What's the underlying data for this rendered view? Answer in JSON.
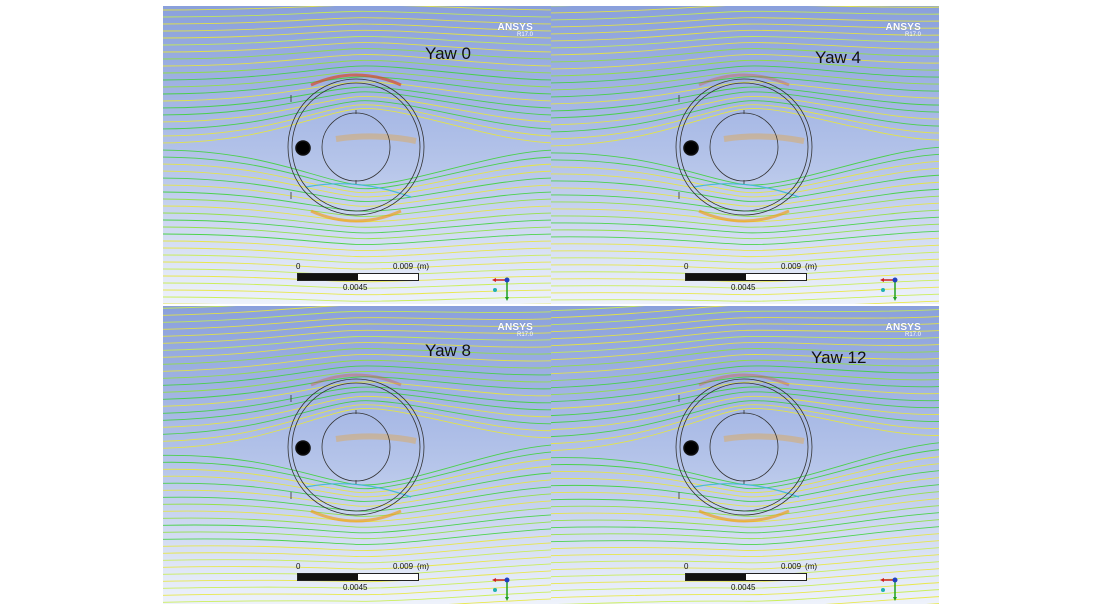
{
  "panels": [
    {
      "label": "Yaw 0"
    },
    {
      "label": "Yaw 4"
    },
    {
      "label": "Yaw 8"
    },
    {
      "label": "Yaw 12"
    }
  ],
  "brand": {
    "name": "ANSYS",
    "version": "R17.0"
  },
  "scale": {
    "zero": "0",
    "max": "0.009",
    "unit": "(m)",
    "mid": "0.0045"
  },
  "colors": {
    "sky_top": "#8aa0dc",
    "sky_bottom": "#eef2fb",
    "streamline_green": "#3fd23a",
    "streamline_yellow": "#e8e83a",
    "streamline_orange": "#f0a020",
    "streamline_red": "#d94a2a",
    "streamline_cyan": "#3ab8d8"
  }
}
